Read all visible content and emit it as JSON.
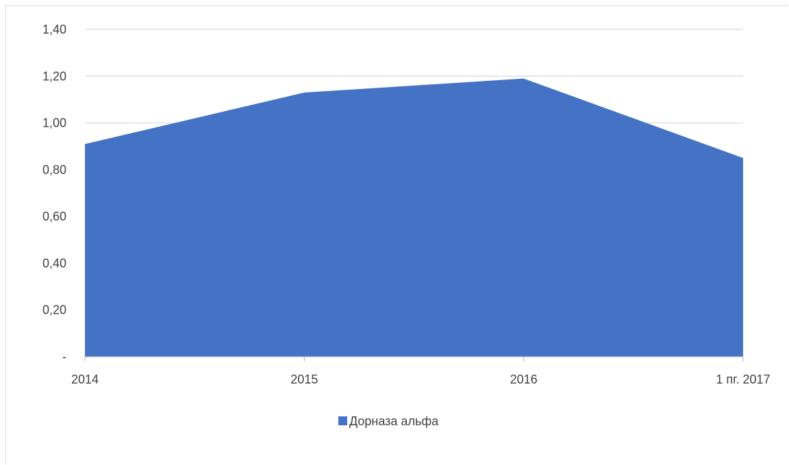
{
  "chart_data": {
    "type": "area",
    "title": "",
    "xlabel": "",
    "ylabel": "",
    "categories": [
      "2014",
      "2015",
      "2016",
      "1 пг. 2017"
    ],
    "y_tick_labels": [
      "-",
      "0,20",
      "0,40",
      "0,60",
      "0,80",
      "1,00",
      "1,20",
      "1,40"
    ],
    "y_tick_values": [
      0,
      0.2,
      0.4,
      0.6,
      0.8,
      1.0,
      1.2,
      1.4
    ],
    "ylim": [
      0,
      1.4
    ],
    "grid": true,
    "legend_position": "bottom",
    "series": [
      {
        "name": "Дорназа альфа",
        "values": [
          0.91,
          1.13,
          1.19,
          0.85
        ],
        "color": "#4472c4"
      }
    ]
  },
  "colors": {
    "gridline": "#d9d9d9",
    "axis": "#bfbfbf",
    "text": "#404040"
  }
}
